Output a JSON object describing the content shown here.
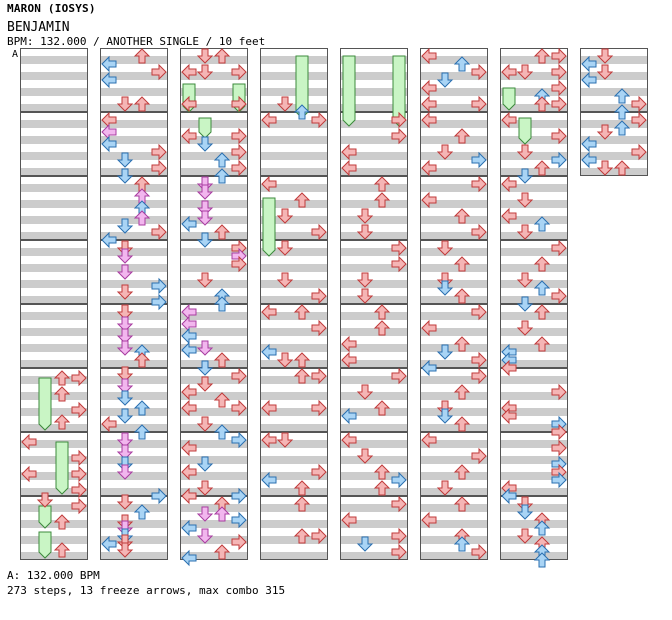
{
  "header": {
    "artist": "MARON (IOSYS)",
    "title": "BENJAMIN",
    "meta": "BPM: 132.000 / ANOTHER SINGLE / 10 feet"
  },
  "chart": {
    "bpm_marker": "A",
    "columns": 8,
    "measures_per_column": 8,
    "total_measures": 58,
    "colors": {
      "stripe": "#cccccc",
      "lane_bg": "#ffffff",
      "border": "#555555",
      "red_arrow": "#f5b5b5",
      "red_stroke": "#c03a3a",
      "blue_arrow": "#a9d4f5",
      "blue_stroke": "#2a6fb0",
      "pink_arrow": "#f2b6ee",
      "pink_stroke": "#a83ca0",
      "freeze_fill": "#c9f5c5",
      "freeze_stroke": "#3c8a3c"
    }
  },
  "footer": {
    "bpm_line": "A: 132.000 BPM",
    "stats_line": "273 steps, 13 freeze arrows, max combo 315"
  }
}
